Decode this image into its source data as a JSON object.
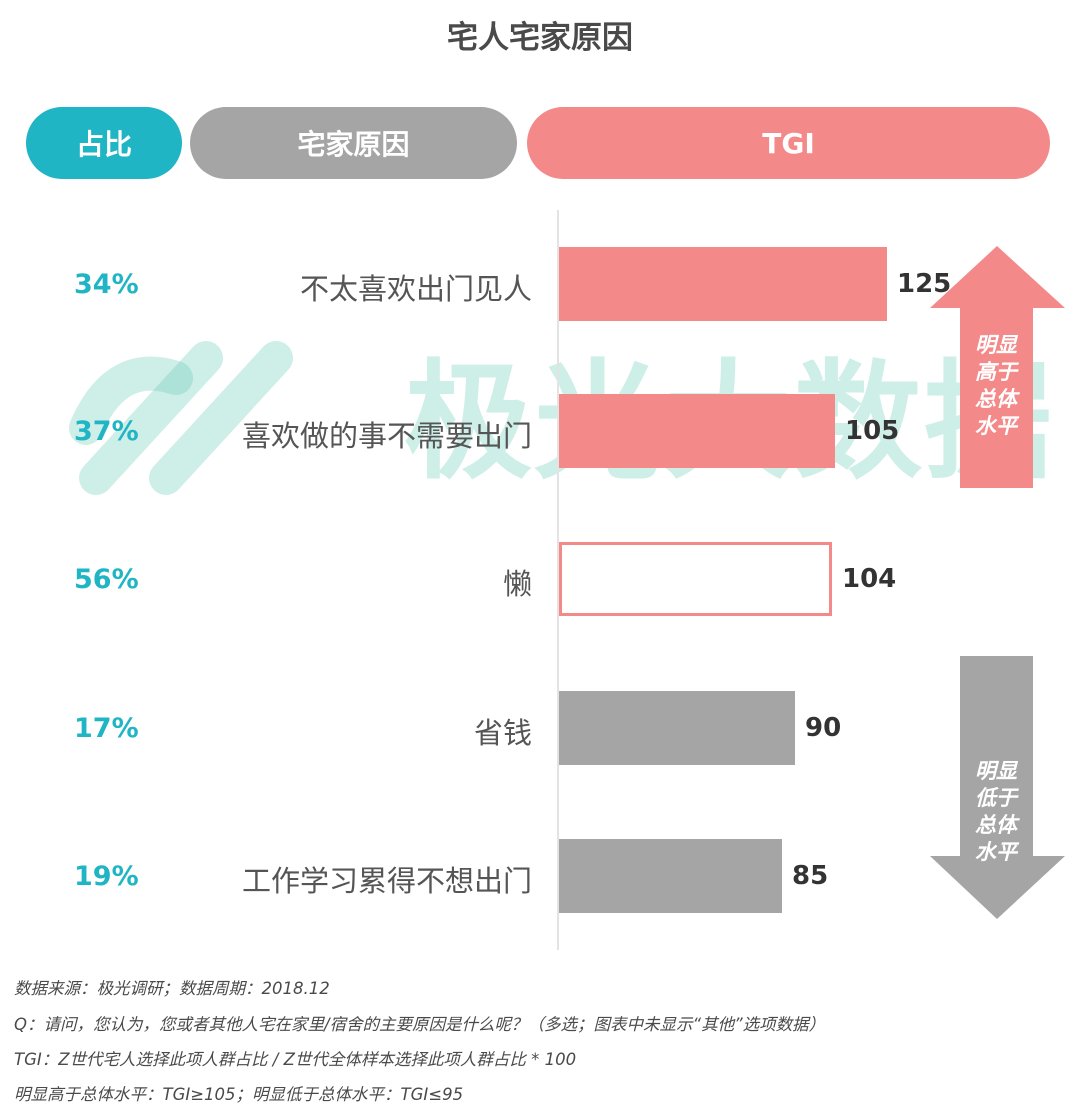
{
  "title": "宅人宅家原因",
  "headers": {
    "share": "占比",
    "reason": "宅家原因",
    "tgi": "TGI"
  },
  "watermark": "极光大数据",
  "colors": {
    "teal": "#1fb5c4",
    "gray": "#a6a5a6",
    "salmon": "#f4898a",
    "high_bar": "#f4898a",
    "low_bar": "#a6a5a6"
  },
  "chart_data": {
    "type": "bar",
    "orientation": "horizontal",
    "categories": [
      "不太喜欢出门见人",
      "喜欢做的事不需要出门",
      "懒",
      "省钱",
      "工作学习累得不想出门"
    ],
    "shares": [
      "34%",
      "37%",
      "56%",
      "17%",
      "19%"
    ],
    "values": [
      125,
      105,
      104,
      90,
      85
    ],
    "value_labels": [
      "125",
      "105",
      "104",
      "90",
      "85"
    ],
    "styles": [
      "high",
      "high",
      "outline",
      "low",
      "low"
    ],
    "xlim": [
      0,
      140
    ]
  },
  "legend": {
    "high": "明显高于总体水平",
    "low": "明显低于总体水平"
  },
  "footnotes": [
    "数据来源：极光调研；数据周期：2018.12",
    "Q：请问，您认为，您或者其他人宅在家里/宿舍的主要原因是什么呢？（多选；图表中未显示“其他”选项数据）",
    "TGI：Z世代宅人选择此项人群占比 / Z世代全体样本选择此项人群占比 * 100",
    "明显高于总体水平：TGI≥105；明显低于总体水平：TGI≤95"
  ]
}
